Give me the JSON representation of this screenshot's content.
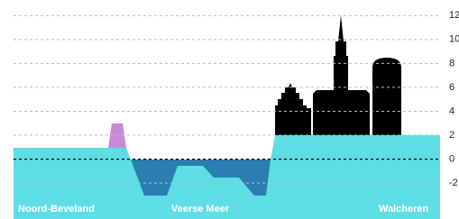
{
  "chart_data": {
    "type": "profile",
    "ylim": [
      -5,
      13.3
    ],
    "yticks": [
      -2,
      0,
      2,
      4,
      6,
      8,
      10,
      12
    ],
    "zero_line": 0,
    "grid": true,
    "regions": [
      "Noord-Beveland",
      "Veerse Meer",
      "Walcheren"
    ]
  }
}
